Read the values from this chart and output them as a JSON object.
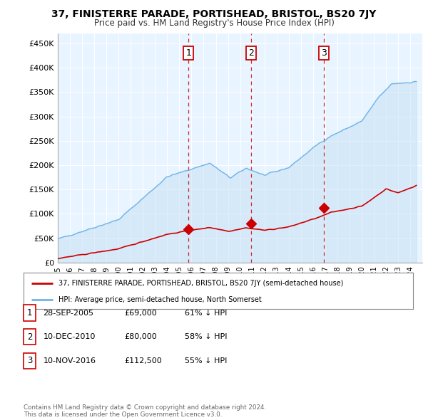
{
  "title": "37, FINISTERRE PARADE, PORTISHEAD, BRISTOL, BS20 7JY",
  "subtitle": "Price paid vs. HM Land Registry's House Price Index (HPI)",
  "ylabel_ticks": [
    "£0",
    "£50K",
    "£100K",
    "£150K",
    "£200K",
    "£250K",
    "£300K",
    "£350K",
    "£400K",
    "£450K"
  ],
  "ytick_values": [
    0,
    50000,
    100000,
    150000,
    200000,
    250000,
    300000,
    350000,
    400000,
    450000
  ],
  "ylim": [
    0,
    470000
  ],
  "xlim_start": 1995.0,
  "xlim_end": 2025.0,
  "hpi_color": "#6eb4e8",
  "hpi_fill_color": "#ddeeff",
  "price_color": "#cc0000",
  "vline_color": "#cc0000",
  "sale_markers": [
    {
      "year": 2005.75,
      "price": 69000,
      "label": "1"
    },
    {
      "year": 2010.92,
      "price": 80000,
      "label": "2"
    },
    {
      "year": 2016.87,
      "price": 112500,
      "label": "3"
    }
  ],
  "legend_address": "37, FINISTERRE PARADE, PORTISHEAD, BRISTOL, BS20 7JY (semi-detached house)",
  "legend_hpi": "HPI: Average price, semi-detached house, North Somerset",
  "table_rows": [
    {
      "num": "1",
      "date": "28-SEP-2005",
      "price": "£69,000",
      "hpi": "61% ↓ HPI"
    },
    {
      "num": "2",
      "date": "10-DEC-2010",
      "price": "£80,000",
      "hpi": "58% ↓ HPI"
    },
    {
      "num": "3",
      "date": "10-NOV-2016",
      "price": "£112,500",
      "hpi": "55% ↓ HPI"
    }
  ],
  "footnote": "Contains HM Land Registry data © Crown copyright and database right 2024.\nThis data is licensed under the Open Government Licence v3.0.",
  "background_color": "#ffffff",
  "grid_color": "#cccccc"
}
